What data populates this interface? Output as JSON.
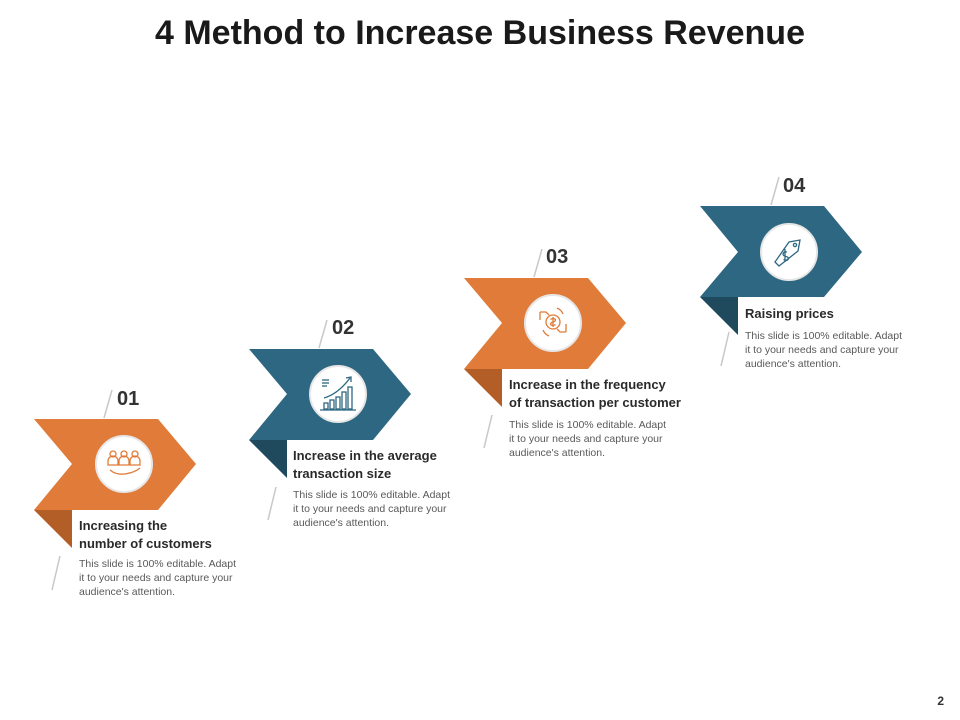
{
  "title": "4 Method to Increase Business Revenue",
  "page_number": "2",
  "colors": {
    "orange": "#E07B39",
    "orange_dark": "#B35E26",
    "teal": "#2E6782",
    "teal_dark": "#1F4A5E"
  },
  "steps": [
    {
      "number": "01",
      "heading_line1": "Increasing the",
      "heading_line2": "number of customers",
      "desc_line1": "This slide is 100% editable. Adapt",
      "desc_line2": "it to your needs and capture your",
      "desc_line3": "audience's attention.",
      "icon": "customers-hand-icon",
      "color": "orange"
    },
    {
      "number": "02",
      "heading_line1": "Increase in the average",
      "heading_line2": "transaction size",
      "desc_line1": "This slide is 100% editable. Adapt",
      "desc_line2": "it to your needs and capture your",
      "desc_line3": "audience's attention.",
      "icon": "growth-chart-icon",
      "color": "teal"
    },
    {
      "number": "03",
      "heading_line1": "Increase in the frequency",
      "heading_line2": "of transaction per customer",
      "desc_line1": "This slide is 100% editable. Adapt",
      "desc_line2": "it to your needs and capture your",
      "desc_line3": "audience's attention.",
      "icon": "money-exchange-icon",
      "color": "orange"
    },
    {
      "number": "04",
      "heading_line1": "Raising prices",
      "heading_line2": "",
      "desc_line1": "This slide is 100% editable. Adapt",
      "desc_line2": "it to your needs and capture your",
      "desc_line3": "audience's attention.",
      "icon": "price-tag-icon",
      "color": "teal"
    }
  ]
}
